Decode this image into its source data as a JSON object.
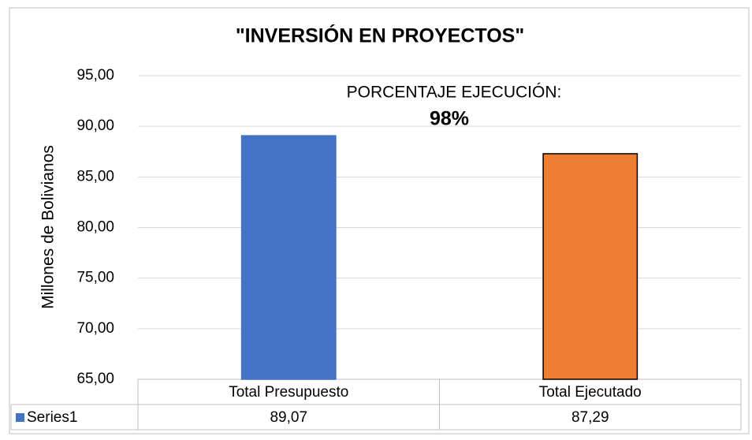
{
  "chart_data": {
    "type": "bar",
    "title": "\"INVERSIÓN EN PROYECTOS\"",
    "ylabel": "Millones de Bolivianos",
    "annotations": [
      "PORCENTAJE EJECUCIÓN:",
      "98%"
    ],
    "categories": [
      "Total Presupuesto",
      "Total Ejecutado"
    ],
    "series": [
      {
        "name": "Series1",
        "color": "#4472c4",
        "colors": [
          "#4472c4",
          "#ed7d31"
        ],
        "edgecolors": [
          "#4472c4",
          "#000000"
        ],
        "values": [
          89.07,
          87.29
        ],
        "value_labels": [
          "89,07",
          "87,29"
        ]
      }
    ],
    "ylim": [
      65,
      95
    ],
    "yticks": [
      {
        "value": 65,
        "label": "65,00"
      },
      {
        "value": 70,
        "label": "70,00"
      },
      {
        "value": 75,
        "label": "75,00"
      },
      {
        "value": 80,
        "label": "80,00"
      },
      {
        "value": 85,
        "label": "85,00"
      },
      {
        "value": 90,
        "label": "90,00"
      },
      {
        "value": 95,
        "label": "95,00"
      }
    ],
    "grid": true
  }
}
